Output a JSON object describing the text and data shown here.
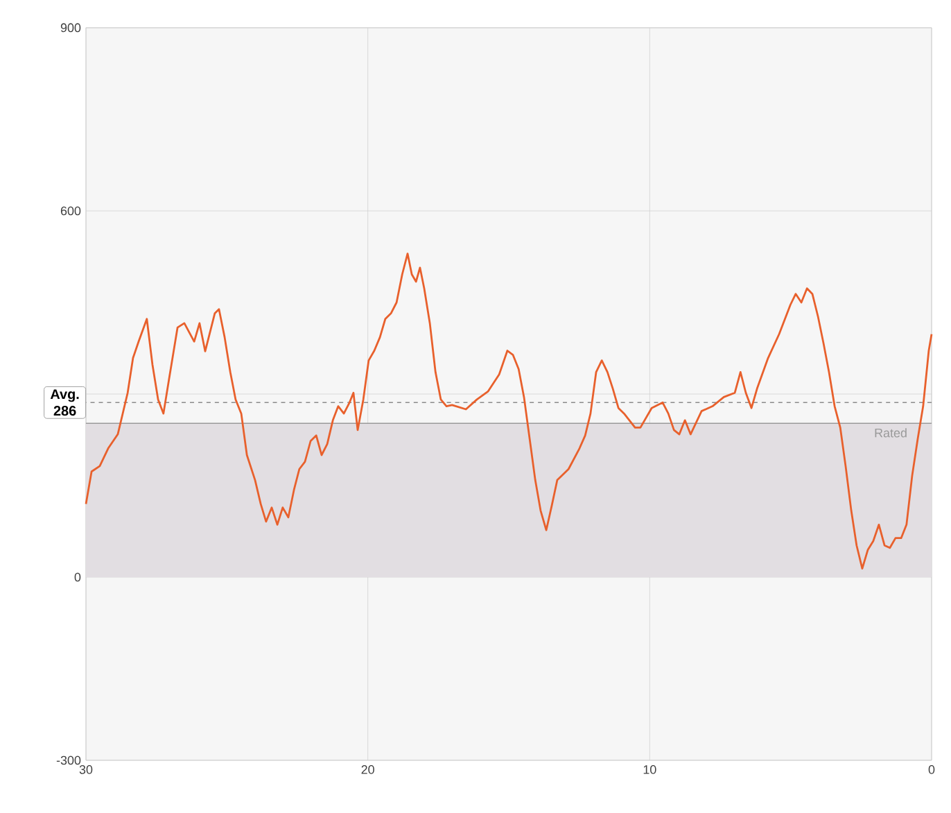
{
  "chart_data": {
    "type": "line",
    "xlim": [
      30,
      0
    ],
    "xticks": [
      30,
      20,
      10,
      0
    ],
    "ylim": [
      -300,
      900
    ],
    "yticks": [
      -300,
      0,
      {
        "value": 300,
        "label": null
      },
      600,
      900
    ],
    "grid": true,
    "marker": "none",
    "line_style": "solid",
    "x": [
      30.0,
      29.8,
      29.51,
      29.21,
      28.87,
      28.52,
      28.33,
      28.13,
      27.84,
      27.64,
      27.44,
      27.25,
      27.05,
      26.75,
      26.51,
      26.16,
      25.97,
      25.77,
      25.43,
      25.28,
      25.08,
      24.88,
      24.69,
      24.49,
      24.29,
      24.0,
      23.8,
      23.61,
      23.41,
      23.21,
      23.02,
      22.82,
      22.62,
      22.43,
      22.23,
      22.03,
      21.83,
      21.64,
      21.44,
      21.24,
      21.05,
      20.85,
      20.65,
      20.51,
      20.36,
      20.16,
      19.97,
      19.77,
      19.57,
      19.38,
      19.18,
      18.98,
      18.78,
      18.59,
      18.44,
      18.29,
      18.15,
      18.0,
      17.8,
      17.6,
      17.41,
      17.21,
      17.01,
      16.52,
      16.13,
      15.74,
      15.34,
      15.05,
      14.85,
      14.65,
      14.46,
      14.26,
      14.06,
      13.87,
      13.67,
      13.47,
      13.28,
      12.88,
      12.49,
      12.29,
      12.1,
      11.9,
      11.7,
      11.5,
      11.31,
      11.11,
      10.91,
      10.52,
      10.33,
      9.93,
      9.54,
      9.34,
      9.14,
      8.95,
      8.75,
      8.55,
      8.16,
      7.77,
      7.37,
      6.98,
      6.78,
      6.59,
      6.39,
      6.19,
      5.8,
      5.41,
      5.01,
      4.82,
      4.62,
      4.42,
      4.23,
      4.03,
      3.83,
      3.64,
      3.44,
      3.24,
      3.05,
      2.85,
      2.66,
      2.46,
      2.26,
      2.07,
      1.87,
      1.67,
      1.48,
      1.28,
      1.08,
      0.89,
      0.69,
      0.49,
      0.3,
      0.1,
      0
    ],
    "series": [
      {
        "color": "#e8602c",
        "values": [
          120,
          173,
          182,
          211,
          234,
          302,
          359,
          386,
          423,
          348,
          291,
          268,
          325,
          409,
          416,
          386,
          416,
          370,
          432,
          439,
          393,
          336,
          291,
          268,
          200,
          159,
          120,
          91,
          114,
          86,
          114,
          98,
          143,
          177,
          189,
          223,
          232,
          200,
          218,
          257,
          280,
          268,
          286,
          302,
          241,
          291,
          355,
          371,
          393,
          423,
          432,
          450,
          496,
          530,
          496,
          484,
          507,
          473,
          416,
          336,
          291,
          280,
          282,
          275,
          291,
          304,
          332,
          371,
          364,
          341,
          295,
          227,
          159,
          109,
          77,
          118,
          159,
          177,
          211,
          232,
          268,
          336,
          355,
          336,
          309,
          277,
          268,
          245,
          245,
          277,
          286,
          268,
          241,
          234,
          257,
          234,
          272,
          280,
          295,
          302,
          336,
          302,
          277,
          309,
          359,
          398,
          446,
          464,
          450,
          473,
          464,
          427,
          382,
          336,
          280,
          245,
          182,
          109,
          52,
          14,
          45,
          59,
          86,
          52,
          48,
          64,
          64,
          86,
          166,
          227,
          280,
          371,
          398
        ]
      }
    ],
    "ref_lines": [
      {
        "axis": "y",
        "value": 286,
        "label": "Avg. 286",
        "line_style": "dashed",
        "color": "#8a8a8a"
      },
      {
        "axis": "y",
        "value": 252,
        "label": "Rated",
        "line_style": "solid",
        "color": "#9a9a9a"
      }
    ],
    "bands": [
      {
        "axis": "y",
        "from": 0,
        "to": 252,
        "color": "#e2dee2"
      }
    ]
  }
}
